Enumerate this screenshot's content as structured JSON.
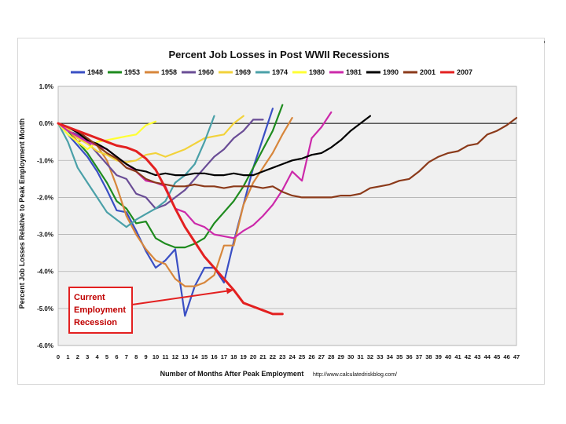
{
  "chart_data": {
    "type": "line",
    "title": "Percent Job Losses in Post WWII Recessions",
    "xlabel": "Number of Months After Peak Employment",
    "ylabel": "Percent Job Losses Relative to Peak Employment Month",
    "source_url": "http://www.calculatedriskblog.com/",
    "xlim": [
      0,
      47
    ],
    "ylim": [
      -6.0,
      1.0
    ],
    "x_ticks": [
      "0",
      "1",
      "2",
      "3",
      "4",
      "5",
      "6",
      "7",
      "8",
      "9",
      "10",
      "11",
      "12",
      "13",
      "14",
      "15",
      "16",
      "17",
      "18",
      "19",
      "20",
      "21",
      "22",
      "23",
      "24",
      "25",
      "26",
      "27",
      "28",
      "29",
      "30",
      "31",
      "32",
      "33",
      "34",
      "35",
      "36",
      "37",
      "38",
      "39",
      "40",
      "41",
      "42",
      "43",
      "44",
      "45",
      "46",
      "47"
    ],
    "y_ticks": [
      1.0,
      0.0,
      -1.0,
      -2.0,
      -3.0,
      -4.0,
      -5.0,
      -6.0
    ],
    "y_tick_labels": [
      "1.0%",
      "0.0%",
      "-1.0%",
      "-2.0%",
      "-3.0%",
      "-4.0%",
      "-5.0%",
      "-6.0%"
    ],
    "grid": true,
    "legend_position": "top",
    "annotation": {
      "lines": [
        "Current",
        "Employment",
        "Recession"
      ],
      "points_to": {
        "x": 18,
        "y": -4.5
      }
    },
    "series": [
      {
        "name": "1948",
        "color": "#3a4fc4",
        "values": [
          0,
          -0.3,
          -0.6,
          -0.9,
          -1.3,
          -1.8,
          -2.35,
          -2.4,
          -2.9,
          -3.45,
          -3.9,
          -3.7,
          -3.4,
          -5.2,
          -4.4,
          -3.9,
          -3.9,
          -4.3,
          -3.2,
          -2.2,
          -1.2,
          -0.4,
          0.4
        ]
      },
      {
        "name": "1953",
        "color": "#1e8b1e",
        "values": [
          0,
          -0.2,
          -0.5,
          -0.8,
          -1.2,
          -1.6,
          -2.1,
          -2.3,
          -2.7,
          -2.65,
          -3.1,
          -3.25,
          -3.35,
          -3.35,
          -3.25,
          -3.1,
          -2.7,
          -2.4,
          -2.1,
          -1.7,
          -1.2,
          -0.7,
          -0.2,
          0.5
        ]
      },
      {
        "name": "1958",
        "color": "#d7863b",
        "values": [
          0,
          -0.15,
          -0.5,
          -0.4,
          -0.6,
          -1.0,
          -1.7,
          -2.5,
          -3.0,
          -3.4,
          -3.7,
          -3.8,
          -4.2,
          -4.4,
          -4.4,
          -4.3,
          -4.1,
          -3.3,
          -3.3,
          -2.2,
          -1.6,
          -1.2,
          -0.8,
          -0.3,
          0.15
        ]
      },
      {
        "name": "1960",
        "color": "#6a4d96",
        "values": [
          0,
          -0.2,
          -0.3,
          -0.5,
          -0.8,
          -1.1,
          -1.4,
          -1.5,
          -1.9,
          -2.0,
          -2.3,
          -2.2,
          -2.0,
          -1.8,
          -1.5,
          -1.2,
          -0.9,
          -0.7,
          -0.4,
          -0.2,
          0.1,
          0.1
        ]
      },
      {
        "name": "1969",
        "color": "#f2d23a",
        "values": [
          0,
          -0.15,
          -0.4,
          -0.55,
          -0.75,
          -0.85,
          -1.0,
          -1.05,
          -1.0,
          -0.85,
          -0.8,
          -0.9,
          -0.8,
          -0.7,
          -0.55,
          -0.4,
          -0.35,
          -0.3,
          0.0,
          0.2
        ]
      },
      {
        "name": "1974",
        "color": "#4aa0a8",
        "values": [
          0,
          -0.5,
          -1.2,
          -1.6,
          -2.0,
          -2.4,
          -2.6,
          -2.8,
          -2.6,
          -2.45,
          -2.3,
          -2.1,
          -1.6,
          -1.4,
          -1.1,
          -0.5,
          0.2
        ]
      },
      {
        "name": "1980",
        "color": "#ffff33",
        "values": [
          0,
          -0.3,
          -0.5,
          -0.7,
          -0.5,
          -0.45,
          -0.4,
          -0.35,
          -0.3,
          -0.05,
          0.05
        ]
      },
      {
        "name": "1981",
        "color": "#cc29aa",
        "values": [
          0,
          -0.2,
          -0.35,
          -0.5,
          -0.6,
          -0.7,
          -0.9,
          -1.1,
          -1.3,
          -1.55,
          -1.6,
          -1.7,
          -2.3,
          -2.4,
          -2.7,
          -2.8,
          -3.0,
          -3.05,
          -3.1,
          -2.9,
          -2.75,
          -2.5,
          -2.2,
          -1.8,
          -1.3,
          -1.55,
          -0.4,
          -0.1,
          0.3
        ]
      },
      {
        "name": "1990",
        "color": "#000000",
        "values": [
          0,
          -0.1,
          -0.25,
          -0.45,
          -0.55,
          -0.7,
          -0.9,
          -1.1,
          -1.25,
          -1.3,
          -1.4,
          -1.35,
          -1.4,
          -1.4,
          -1.35,
          -1.35,
          -1.4,
          -1.4,
          -1.35,
          -1.4,
          -1.4,
          -1.3,
          -1.2,
          -1.1,
          -1.0,
          -0.95,
          -0.85,
          -0.8,
          -0.65,
          -0.45,
          -0.2,
          0.0,
          0.2
        ]
      },
      {
        "name": "2001",
        "color": "#8b3a1a",
        "values": [
          0,
          -0.1,
          -0.2,
          -0.4,
          -0.6,
          -0.8,
          -0.95,
          -1.2,
          -1.3,
          -1.5,
          -1.6,
          -1.65,
          -1.7,
          -1.7,
          -1.65,
          -1.7,
          -1.7,
          -1.75,
          -1.7,
          -1.7,
          -1.7,
          -1.75,
          -1.7,
          -1.85,
          -1.95,
          -2.0,
          -2.0,
          -2.0,
          -2.0,
          -1.95,
          -1.95,
          -1.9,
          -1.75,
          -1.7,
          -1.65,
          -1.55,
          -1.5,
          -1.3,
          -1.05,
          -0.9,
          -0.8,
          -0.75,
          -0.6,
          -0.55,
          -0.3,
          -0.2,
          -0.05,
          0.15
        ]
      },
      {
        "name": "2007",
        "color": "#e32020",
        "values": [
          0,
          -0.1,
          -0.2,
          -0.3,
          -0.4,
          -0.5,
          -0.6,
          -0.65,
          -0.75,
          -0.95,
          -1.25,
          -1.75,
          -2.3,
          -2.8,
          -3.2,
          -3.6,
          -3.9,
          -4.2,
          -4.5,
          -4.85,
          -4.95,
          -5.05,
          -5.15,
          -5.15
        ]
      }
    ]
  }
}
